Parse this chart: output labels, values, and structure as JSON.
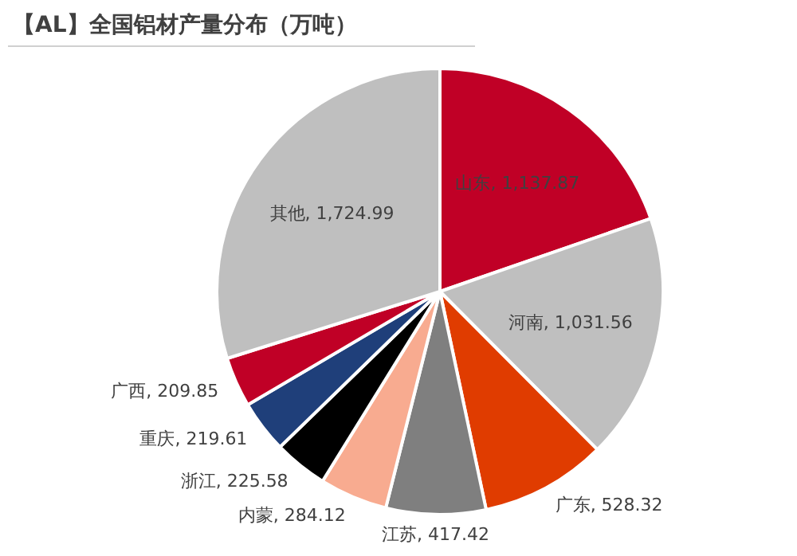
{
  "chart_data": {
    "type": "pie",
    "title": "【AL】全国铝材产量分布（万吨）",
    "categories": [
      "山东",
      "河南",
      "广东",
      "江苏",
      "内蒙",
      "浙江",
      "重庆",
      "广西",
      "其他"
    ],
    "values": [
      1137.87,
      1031.56,
      528.32,
      417.42,
      284.12,
      225.58,
      219.61,
      209.85,
      1724.99
    ],
    "value_labels": [
      "1,137.87",
      "1,031.56",
      "528.32",
      "417.42",
      "284.12",
      "225.58",
      "219.61",
      "209.85",
      "1,724.99"
    ],
    "colors": [
      "#c00026",
      "#bfbfbf",
      "#e03c00",
      "#7f7f7f",
      "#f8ab90",
      "#000000",
      "#1f3f7a",
      "#c00026",
      "#bfbfbf"
    ],
    "legend": false
  }
}
